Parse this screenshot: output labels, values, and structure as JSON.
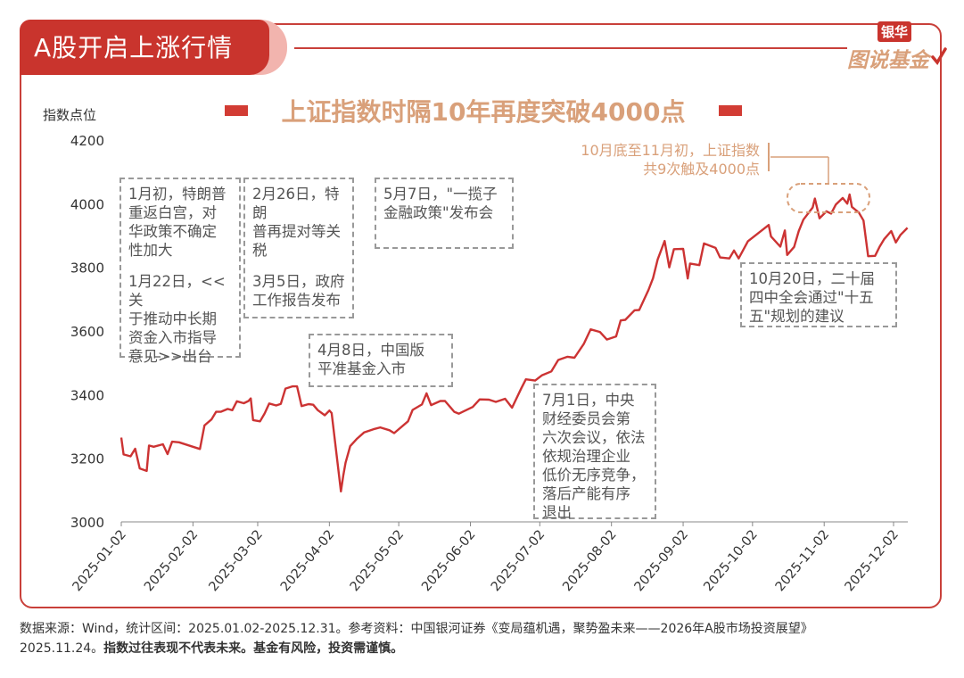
{
  "header": {
    "title": "A股开启上涨行情"
  },
  "logo": {
    "top": "银华",
    "main": "图说基金"
  },
  "chart_data": {
    "type": "line",
    "title": "上证指数时隔10年再度突破4000点",
    "ylabel": "指数点位",
    "xlabel": "",
    "ylim": [
      3000,
      4200
    ],
    "yticks": [
      3000,
      3200,
      3400,
      3600,
      3800,
      4000,
      4200
    ],
    "xtick_labels": [
      "2025-01-02",
      "2025-02-02",
      "2025-03-02",
      "2025-04-02",
      "2025-05-02",
      "2025-06-02",
      "2025-07-02",
      "2025-08-02",
      "2025-09-02",
      "2025-10-02",
      "2025-11-02",
      "2025-12-02"
    ],
    "grid": false,
    "line_color": "#cc3333",
    "series": [
      {
        "points": [
          [
            "2025-01-02",
            3265
          ],
          [
            "2025-01-03",
            3212
          ],
          [
            "2025-01-06",
            3206
          ],
          [
            "2025-01-08",
            3230
          ],
          [
            "2025-01-10",
            3168
          ],
          [
            "2025-01-13",
            3160
          ],
          [
            "2025-01-14",
            3240
          ],
          [
            "2025-01-16",
            3236
          ],
          [
            "2025-01-20",
            3244
          ],
          [
            "2025-01-22",
            3213
          ],
          [
            "2025-01-24",
            3252
          ],
          [
            "2025-01-27",
            3250
          ],
          [
            "2025-02-05",
            3229
          ],
          [
            "2025-02-07",
            3303
          ],
          [
            "2025-02-10",
            3322
          ],
          [
            "2025-02-12",
            3346
          ],
          [
            "2025-02-14",
            3346
          ],
          [
            "2025-02-17",
            3355
          ],
          [
            "2025-02-19",
            3351
          ],
          [
            "2025-02-21",
            3379
          ],
          [
            "2025-02-24",
            3373
          ],
          [
            "2025-02-26",
            3380
          ],
          [
            "2025-02-27",
            3388
          ],
          [
            "2025-02-28",
            3320
          ],
          [
            "2025-03-03",
            3316
          ],
          [
            "2025-03-05",
            3341
          ],
          [
            "2025-03-07",
            3372
          ],
          [
            "2025-03-10",
            3366
          ],
          [
            "2025-03-12",
            3371
          ],
          [
            "2025-03-14",
            3419
          ],
          [
            "2025-03-17",
            3426
          ],
          [
            "2025-03-19",
            3426
          ],
          [
            "2025-03-21",
            3364
          ],
          [
            "2025-03-24",
            3370
          ],
          [
            "2025-03-26",
            3368
          ],
          [
            "2025-03-28",
            3351
          ],
          [
            "2025-03-31",
            3335
          ],
          [
            "2025-04-02",
            3350
          ],
          [
            "2025-04-03",
            3342
          ],
          [
            "2025-04-07",
            3096
          ],
          [
            "2025-04-08",
            3145
          ],
          [
            "2025-04-09",
            3186
          ],
          [
            "2025-04-11",
            3238
          ],
          [
            "2025-04-14",
            3262
          ],
          [
            "2025-04-17",
            3281
          ],
          [
            "2025-04-21",
            3291
          ],
          [
            "2025-04-24",
            3297
          ],
          [
            "2025-04-28",
            3288
          ],
          [
            "2025-04-30",
            3279
          ],
          [
            "2025-05-06",
            3316
          ],
          [
            "2025-05-08",
            3352
          ],
          [
            "2025-05-12",
            3369
          ],
          [
            "2025-05-14",
            3404
          ],
          [
            "2025-05-16",
            3367
          ],
          [
            "2025-05-20",
            3380
          ],
          [
            "2025-05-22",
            3380
          ],
          [
            "2025-05-26",
            3346
          ],
          [
            "2025-05-28",
            3340
          ],
          [
            "2025-05-30",
            3347
          ],
          [
            "2025-06-03",
            3361
          ],
          [
            "2025-06-06",
            3385
          ],
          [
            "2025-06-10",
            3384
          ],
          [
            "2025-06-13",
            3377
          ],
          [
            "2025-06-17",
            3387
          ],
          [
            "2025-06-20",
            3359
          ],
          [
            "2025-06-24",
            3420
          ],
          [
            "2025-06-26",
            3448
          ],
          [
            "2025-06-30",
            3444
          ],
          [
            "2025-07-03",
            3461
          ],
          [
            "2025-07-07",
            3473
          ],
          [
            "2025-07-10",
            3509
          ],
          [
            "2025-07-14",
            3519
          ],
          [
            "2025-07-17",
            3516
          ],
          [
            "2025-07-21",
            3559
          ],
          [
            "2025-07-24",
            3605
          ],
          [
            "2025-07-28",
            3597
          ],
          [
            "2025-07-31",
            3573
          ],
          [
            "2025-08-04",
            3583
          ],
          [
            "2025-08-06",
            3633
          ],
          [
            "2025-08-08",
            3635
          ],
          [
            "2025-08-12",
            3665
          ],
          [
            "2025-08-14",
            3666
          ],
          [
            "2025-08-18",
            3729
          ],
          [
            "2025-08-20",
            3766
          ],
          [
            "2025-08-22",
            3825
          ],
          [
            "2025-08-25",
            3883
          ],
          [
            "2025-08-27",
            3800
          ],
          [
            "2025-08-29",
            3857
          ],
          [
            "2025-09-02",
            3858
          ],
          [
            "2025-09-04",
            3765
          ],
          [
            "2025-09-05",
            3812
          ],
          [
            "2025-09-09",
            3807
          ],
          [
            "2025-09-11",
            3875
          ],
          [
            "2025-09-16",
            3861
          ],
          [
            "2025-09-18",
            3831
          ],
          [
            "2025-09-22",
            3828
          ],
          [
            "2025-09-24",
            3853
          ],
          [
            "2025-09-26",
            3828
          ],
          [
            "2025-09-30",
            3882
          ],
          [
            "2025-10-09",
            3933
          ],
          [
            "2025-10-10",
            3897
          ],
          [
            "2025-10-14",
            3865
          ],
          [
            "2025-10-16",
            3916
          ],
          [
            "2025-10-17",
            3839
          ],
          [
            "2025-10-20",
            3864
          ],
          [
            "2025-10-22",
            3914
          ],
          [
            "2025-10-24",
            3950
          ],
          [
            "2025-10-28",
            3988
          ],
          [
            "2025-10-29",
            4016
          ],
          [
            "2025-10-31",
            3954
          ],
          [
            "2025-11-03",
            3976
          ],
          [
            "2025-11-05",
            3969
          ],
          [
            "2025-11-07",
            3997
          ],
          [
            "2025-11-10",
            4018
          ],
          [
            "2025-11-12",
            4000
          ],
          [
            "2025-11-13",
            4029
          ],
          [
            "2025-11-14",
            3990
          ],
          [
            "2025-11-17",
            3972
          ],
          [
            "2025-11-19",
            3947
          ],
          [
            "2025-11-21",
            3835
          ],
          [
            "2025-11-24",
            3836
          ],
          [
            "2025-11-26",
            3865
          ],
          [
            "2025-11-28",
            3889
          ],
          [
            "2025-12-01",
            3914
          ],
          [
            "2025-12-03",
            3878
          ],
          [
            "2025-12-05",
            3902
          ],
          [
            "2025-12-08",
            3924
          ]
        ]
      }
    ],
    "annotations": [
      {
        "id": "a1",
        "lines": [
          "1月初，特朗普",
          "重返白宫，对",
          "华政策不确定",
          "性加大"
        ],
        "lines2": [
          "1月22日，<<关",
          "于推动中长期",
          "资金入市指导",
          "意见>>出台"
        ]
      },
      {
        "id": "a2",
        "lines": [
          "2月26日，特朗",
          "普再提对等关",
          "税"
        ],
        "lines2": [
          "3月5日，政府",
          "工作报告发布"
        ]
      },
      {
        "id": "a3",
        "lines": [
          "5月7日，\"一揽子",
          "金融政策\"发布会"
        ]
      },
      {
        "id": "a4",
        "lines": [
          "4月8日，中国版",
          "平准基金入市"
        ]
      },
      {
        "id": "a5",
        "lines": [
          "7月1日，中央",
          "财经委员会第",
          "六次会议，依法",
          "依规治理企业",
          "低价无序竞争，",
          "落后产能有序",
          "退出"
        ]
      },
      {
        "id": "a6",
        "lines": [
          "10月20日，二十届",
          "四中全会通过\"十五",
          "五\"规划的建议"
        ]
      }
    ],
    "callout": {
      "lines": [
        "10月底至11月初，上证指数",
        "共9次触及4000点"
      ],
      "color": "#d9a07a"
    }
  },
  "footer": {
    "line1": "数据来源：Wind，统计区间：2025.01.02-2025.12.31。参考资料：中国银河证券《变局蕴机遇，聚势盈未来——2026年A股市场投资展望》",
    "line2_plain": "2025.11.24。",
    "line2_bold": "指数过往表现不代表未来。基金有风险，投资需谨慎。"
  }
}
